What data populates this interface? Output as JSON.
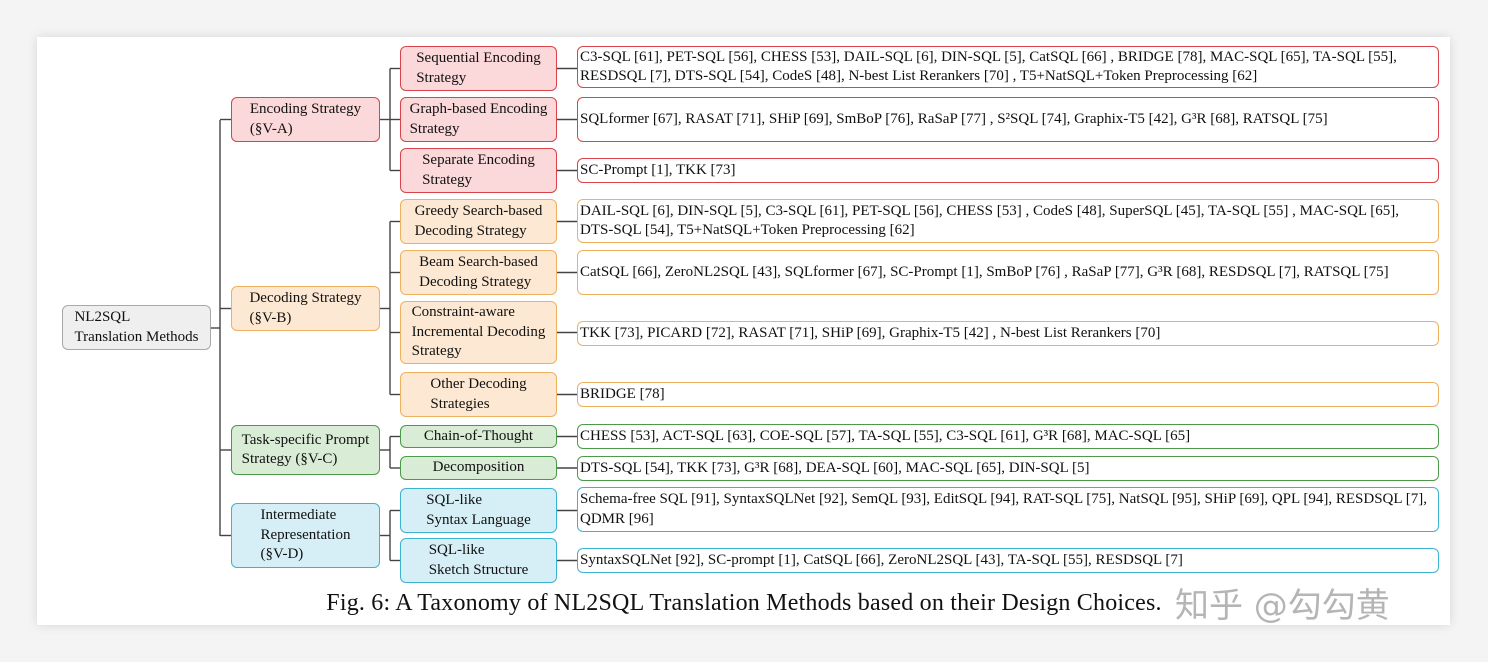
{
  "diagram": {
    "root": {
      "label": "NL2SQL\nTranslation Methods",
      "fill": "#efefef",
      "border": "#a8a8a8"
    },
    "categories": [
      {
        "label": "Encoding Strategy\n(§V-A)",
        "fill": "#fbd8d9",
        "border": "#d9434a",
        "children": [
          {
            "label": "Sequential Encoding\nStrategy",
            "methods": "C3-SQL [61], PET-SQL [56], CHESS [53], DAIL-SQL [6], DIN-SQL [5], CatSQL [66] ,  BRIDGE [78], MAC-SQL [65], TA-SQL [55], RESDSQL [7], DTS-SQL [54], CodeS [48], N-best List Rerankers [70] ,  T5+NatSQL+Token Preprocessing [62]"
          },
          {
            "label": "Graph-based Encoding\nStrategy",
            "methods": "SQLformer [67], RASAT [71], SHiP [69], SmBoP [76], RaSaP [77] ,  S²SQL [74], Graphix-T5 [42], G³R [68], RATSQL [75]"
          },
          {
            "label": "Separate Encoding\nStrategy",
            "methods": "SC-Prompt [1], TKK [73]"
          }
        ]
      },
      {
        "label": "Decoding Strategy\n(§V-B)",
        "fill": "#fde9d3",
        "border": "#eeb160",
        "children": [
          {
            "label": "Greedy Search-based\nDecoding Strategy",
            "methods": "DAIL-SQL [6], DIN-SQL [5], C3-SQL [61], PET-SQL [56], CHESS [53] , CodeS [48], SuperSQL [45],  TA-SQL [55] , MAC-SQL [65], DTS-SQL [54], T5+NatSQL+Token Preprocessing [62]"
          },
          {
            "label": "Beam Search-based\nDecoding Strategy",
            "methods": "CatSQL [66], ZeroNL2SQL [43], SQLformer [67], SC-Prompt [1], SmBoP [76] ,  RaSaP [77], G³R [68], RESDSQL [7], RATSQL [75]"
          },
          {
            "label": "Constraint-aware\nIncremental Decoding\nStrategy",
            "methods": "TKK [73], PICARD [72], RASAT [71], SHiP [69], Graphix-T5 [42] ,  N-best List Rerankers [70]"
          },
          {
            "label": "Other Decoding\nStrategies",
            "methods": "BRIDGE [78]"
          }
        ]
      },
      {
        "label": "Task-specific Prompt\nStrategy (§V-C)",
        "fill": "#d9ecd6",
        "border": "#4a9a4a",
        "children": [
          {
            "label": "Chain-of-Thought",
            "methods": "CHESS [53],  ACT-SQL [63],  COE-SQL [57],  TA-SQL [55],  C3-SQL [61],  G³R [68],  MAC-SQL [65]"
          },
          {
            "label": "Decomposition",
            "methods": "DTS-SQL [54],  TKK [73],  G³R [68],  DEA-SQL [60],  MAC-SQL [65],  DIN-SQL [5]"
          }
        ]
      },
      {
        "label": "Intermediate\nRepresentation\n(§V-D)",
        "fill": "#d6eff6",
        "border": "#3cb4d0",
        "children": [
          {
            "label": "SQL-like\nSyntax Language",
            "methods": "Schema-free SQL [91],  SyntaxSQLNet [92],  SemQL [93],  EditSQL [94],  RAT-SQL [75],  NatSQL [95],  SHiP [69], QPL [94],  RESDSQL [7],  QDMR [96]"
          },
          {
            "label": "SQL-like\nSketch Structure",
            "methods": "SyntaxSQLNet [92],  SC-prompt [1],  CatSQL [66],  ZeroNL2SQL [43],  TA-SQL [55],  RESDSQL [7]"
          }
        ]
      }
    ]
  },
  "caption": "Fig. 6: A Taxonomy of NL2SQL Translation Methods based on their Design Choices.",
  "watermark": "知乎 @勾勾黄"
}
